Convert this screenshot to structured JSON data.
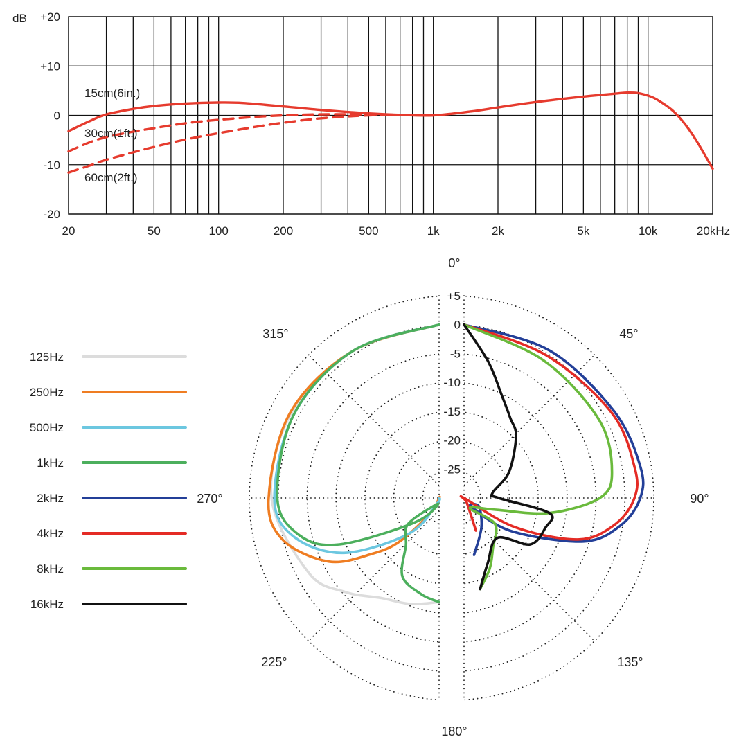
{
  "chart_data": [
    {
      "type": "line",
      "xscale": "log",
      "xlim": [
        20,
        20000
      ],
      "ylim": [
        -20,
        20
      ],
      "ylabel": "dB",
      "grid": true,
      "x_ticks": [
        {
          "value": 20,
          "label": "20"
        },
        {
          "value": 50,
          "label": "50"
        },
        {
          "value": 100,
          "label": "100"
        },
        {
          "value": 200,
          "label": "200"
        },
        {
          "value": 500,
          "label": "500"
        },
        {
          "value": 1000,
          "label": "1k"
        },
        {
          "value": 2000,
          "label": "2k"
        },
        {
          "value": 5000,
          "label": "5k"
        },
        {
          "value": 10000,
          "label": "10k"
        },
        {
          "value": 20000,
          "label": "20kHz"
        }
      ],
      "y_ticks": [
        {
          "value": 20,
          "label": "+20"
        },
        {
          "value": 10,
          "label": "+10"
        },
        {
          "value": 0,
          "label": "0"
        },
        {
          "value": -10,
          "label": "-10"
        },
        {
          "value": -20,
          "label": "-20"
        }
      ],
      "series": [
        {
          "name": "15cm(6in.)",
          "color": "#e63b2e",
          "style": "solid",
          "points": [
            [
              20,
              -3.2
            ],
            [
              25,
              -1.2
            ],
            [
              30,
              0.2
            ],
            [
              40,
              1.3
            ],
            [
              50,
              1.9
            ],
            [
              70,
              2.4
            ],
            [
              100,
              2.6
            ],
            [
              130,
              2.5
            ],
            [
              200,
              1.8
            ],
            [
              300,
              1.1
            ],
            [
              500,
              0.4
            ],
            [
              700,
              0.1
            ],
            [
              1000,
              0
            ],
            [
              1500,
              0.8
            ],
            [
              2000,
              1.6
            ],
            [
              3000,
              2.7
            ],
            [
              5000,
              3.8
            ],
            [
              7000,
              4.4
            ],
            [
              8000,
              4.6
            ],
            [
              9000,
              4.5
            ],
            [
              10000,
              4.0
            ],
            [
              11000,
              3.2
            ],
            [
              13000,
              1.0
            ],
            [
              15000,
              -2.0
            ],
            [
              17000,
              -5.5
            ],
            [
              20000,
              -10.8
            ]
          ]
        },
        {
          "name": "30cm(1ft.)",
          "color": "#e63b2e",
          "style": "dashed",
          "points": [
            [
              20,
              -7.3
            ],
            [
              25,
              -5.5
            ],
            [
              30,
              -4.4
            ],
            [
              40,
              -3.3
            ],
            [
              50,
              -2.6
            ],
            [
              70,
              -1.6
            ],
            [
              100,
              -0.9
            ],
            [
              150,
              -0.3
            ],
            [
              200,
              0
            ],
            [
              300,
              0.2
            ],
            [
              500,
              0.2
            ],
            [
              700,
              0.1
            ],
            [
              1000,
              0
            ]
          ]
        },
        {
          "name": "60cm(2ft.)",
          "color": "#e63b2e",
          "style": "dashed",
          "points": [
            [
              20,
              -11.6
            ],
            [
              25,
              -10.2
            ],
            [
              30,
              -9.0
            ],
            [
              40,
              -7.5
            ],
            [
              50,
              -6.4
            ],
            [
              70,
              -4.9
            ],
            [
              100,
              -3.6
            ],
            [
              150,
              -2.3
            ],
            [
              200,
              -1.5
            ],
            [
              300,
              -0.6
            ],
            [
              500,
              0
            ],
            [
              700,
              0.1
            ],
            [
              1000,
              0
            ]
          ]
        }
      ]
    },
    {
      "type": "line",
      "polar": true,
      "r_range": [
        -30,
        5
      ],
      "r_ticks": [
        {
          "value": 5,
          "label": "+5"
        },
        {
          "value": 0,
          "label": "0"
        },
        {
          "value": -5,
          "label": "-5"
        },
        {
          "value": -10,
          "label": "-10"
        },
        {
          "value": -15,
          "label": "-15"
        },
        {
          "value": -20,
          "label": "-20"
        },
        {
          "value": -25,
          "label": "-25"
        }
      ],
      "angle_labels": [
        {
          "angle": 0,
          "label": "0°"
        },
        {
          "angle": 45,
          "label": "45°"
        },
        {
          "angle": 90,
          "label": "90°"
        },
        {
          "angle": 135,
          "label": "135°"
        },
        {
          "angle": 180,
          "label": "180°"
        },
        {
          "angle": 225,
          "label": "225°"
        },
        {
          "angle": 270,
          "label": "270°"
        },
        {
          "angle": 315,
          "label": "315°"
        }
      ],
      "series": [
        {
          "name": "125Hz",
          "color": "#dcdcdc",
          "side": "left",
          "points": [
            [
              0,
              0
            ],
            [
              30,
              -0.5
            ],
            [
              60,
              -0.5
            ],
            [
              90,
              -1
            ],
            [
              120,
              -4
            ],
            [
              135,
              -7
            ],
            [
              150,
              -10
            ],
            [
              165,
              -11
            ],
            [
              180,
              -12
            ]
          ]
        },
        {
          "name": "250Hz",
          "color": "#ef7d22",
          "side": "left",
          "points": [
            [
              0,
              0
            ],
            [
              30,
              -0.5
            ],
            [
              60,
              -0.3
            ],
            [
              90,
              -0.5
            ],
            [
              105,
              -2
            ],
            [
              120,
              -8
            ],
            [
              130,
              -15
            ],
            [
              138,
              -20
            ],
            [
              150,
              -27
            ],
            [
              165,
              -30
            ],
            [
              180,
              -30
            ]
          ]
        },
        {
          "name": "500Hz",
          "color": "#6cc7e0",
          "side": "left",
          "points": [
            [
              0,
              0
            ],
            [
              30,
              -0.5
            ],
            [
              60,
              -1
            ],
            [
              90,
              -1.5
            ],
            [
              105,
              -4
            ],
            [
              120,
              -11
            ],
            [
              140,
              -22
            ],
            [
              160,
              -29
            ],
            [
              180,
              -30
            ]
          ]
        },
        {
          "name": "1kHz",
          "color": "#4caf5d",
          "side": "left",
          "points": [
            [
              0,
              0
            ],
            [
              30,
              -0.5
            ],
            [
              60,
              -1
            ],
            [
              90,
              -2
            ],
            [
              105,
              -5
            ],
            [
              115,
              -11
            ],
            [
              135,
              -24
            ],
            [
              170,
              -29
            ],
            [
              130,
              -23
            ],
            [
              145,
              -20
            ],
            [
              155,
              -15
            ],
            [
              170,
              -13
            ],
            [
              180,
              -12
            ]
          ]
        },
        {
          "name": "2kHz",
          "color": "#233f98",
          "side": "right",
          "points": [
            [
              0,
              0
            ],
            [
              30,
              -0.5
            ],
            [
              60,
              0
            ],
            [
              80,
              1
            ],
            [
              90,
              0.5
            ],
            [
              100,
              -2.5
            ],
            [
              110,
              -8
            ],
            [
              125,
              -20
            ],
            [
              140,
              -28
            ],
            [
              120,
              -27
            ],
            [
              150,
              -24
            ],
            [
              170,
              -20
            ]
          ]
        },
        {
          "name": "4kHz",
          "color": "#e42b25",
          "side": "right",
          "points": [
            [
              0,
              0
            ],
            [
              30,
              -1.5
            ],
            [
              60,
              -0.5
            ],
            [
              80,
              0
            ],
            [
              90,
              -0.5
            ],
            [
              100,
              -3.5
            ],
            [
              110,
              -9
            ],
            [
              120,
              -20
            ],
            [
              140,
              -30
            ],
            [
              150,
              -29
            ],
            [
              160,
              -24
            ]
          ]
        },
        {
          "name": "8kHz",
          "color": "#6aba3c",
          "side": "right",
          "points": [
            [
              0,
              0
            ],
            [
              30,
              -2.5
            ],
            [
              60,
              -3
            ],
            [
              80,
              -4
            ],
            [
              90,
              -6.5
            ],
            [
              100,
              -15
            ],
            [
              110,
              -24
            ],
            [
              150,
              -28
            ],
            [
              130,
              -23
            ],
            [
              150,
              -20
            ],
            [
              160,
              -17
            ],
            [
              170,
              -14
            ]
          ]
        },
        {
          "name": "16kHz",
          "color": "#111111",
          "side": "right",
          "points": [
            [
              0,
              0
            ],
            [
              10,
              -6
            ],
            [
              20,
              -11
            ],
            [
              30,
              -14
            ],
            [
              40,
              -16
            ],
            [
              60,
              -21
            ],
            [
              80,
              -25
            ],
            [
              90,
              -24
            ],
            [
              100,
              -15
            ],
            [
              110,
              -15
            ],
            [
              125,
              -16
            ],
            [
              140,
              -21
            ],
            [
              160,
              -18
            ],
            [
              170,
              -14
            ]
          ]
        }
      ]
    }
  ]
}
